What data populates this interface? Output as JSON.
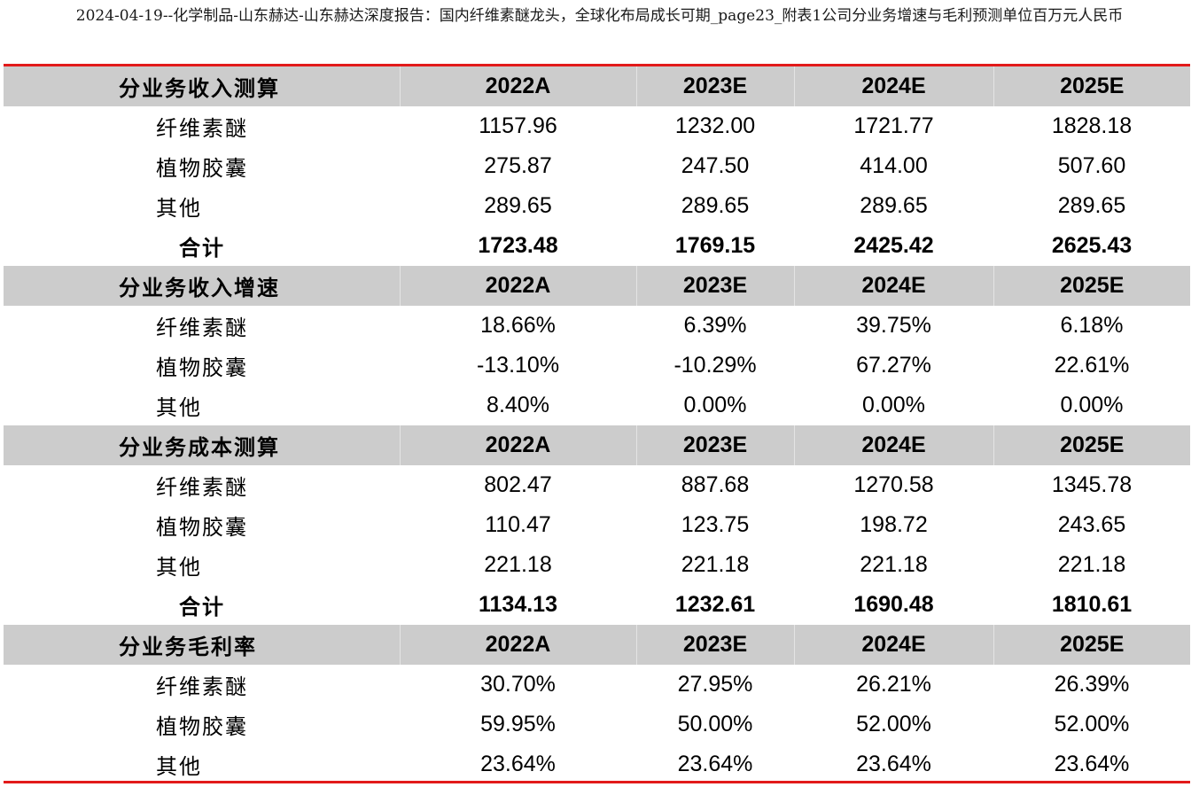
{
  "title": "2024-04-19--化学制品-山东赫达-山东赫达深度报告：国内纤维素醚龙头，全球化布局成长可期_page23_附表1公司分业务增速与毛利预测单位百万元人民币",
  "colors": {
    "accent_rule": "#e21a1a",
    "header_fill": "#cccccc"
  },
  "chart_data": {
    "type": "table",
    "title": "2024-04-19--化学制品-山东赫达-山东赫达深度报告：国内纤维素醚龙头，全球化布局成长可期_page23_附表1公司分业务增速与毛利预测单位百万元人民币",
    "columns": [
      "2022A",
      "2023E",
      "2024E",
      "2025E"
    ],
    "sections": [
      {
        "header": "分业务收入测算",
        "columns": [
          "2022A",
          "2023E",
          "2024E",
          "2025E"
        ],
        "rows": [
          {
            "label": "纤维素醚",
            "values": [
              "1157.96",
              "1232.00",
              "1721.77",
              "1828.18"
            ]
          },
          {
            "label": "植物胶囊",
            "values": [
              "275.87",
              "247.50",
              "414.00",
              "507.60"
            ]
          },
          {
            "label": "其他",
            "values": [
              "289.65",
              "289.65",
              "289.65",
              "289.65"
            ]
          },
          {
            "label": "合计",
            "values": [
              "1723.48",
              "1769.15",
              "2425.42",
              "2625.43"
            ],
            "total": true
          }
        ]
      },
      {
        "header": "分业务收入增速",
        "columns": [
          "2022A",
          "2023E",
          "2024E",
          "2025E"
        ],
        "rows": [
          {
            "label": "纤维素醚",
            "values": [
              "18.66%",
              "6.39%",
              "39.75%",
              "6.18%"
            ]
          },
          {
            "label": "植物胶囊",
            "values": [
              "-13.10%",
              "-10.29%",
              "67.27%",
              "22.61%"
            ]
          },
          {
            "label": "其他",
            "values": [
              "8.40%",
              "0.00%",
              "0.00%",
              "0.00%"
            ]
          }
        ]
      },
      {
        "header": "分业务成本测算",
        "columns": [
          "2022A",
          "2023E",
          "2024E",
          "2025E"
        ],
        "rows": [
          {
            "label": "纤维素醚",
            "values": [
              "802.47",
              "887.68",
              "1270.58",
              "1345.78"
            ]
          },
          {
            "label": "植物胶囊",
            "values": [
              "110.47",
              "123.75",
              "198.72",
              "243.65"
            ]
          },
          {
            "label": "其他",
            "values": [
              "221.18",
              "221.18",
              "221.18",
              "221.18"
            ]
          },
          {
            "label": "合计",
            "values": [
              "1134.13",
              "1232.61",
              "1690.48",
              "1810.61"
            ],
            "total": true
          }
        ]
      },
      {
        "header": "分业务毛利率",
        "columns": [
          "2022A",
          "2023E",
          "2024E",
          "2025E"
        ],
        "rows": [
          {
            "label": "纤维素醚",
            "values": [
              "30.70%",
              "27.95%",
              "26.21%",
              "26.39%"
            ]
          },
          {
            "label": "植物胶囊",
            "values": [
              "59.95%",
              "50.00%",
              "52.00%",
              "52.00%"
            ]
          },
          {
            "label": "其他",
            "values": [
              "23.64%",
              "23.64%",
              "23.64%",
              "23.64%"
            ]
          }
        ]
      }
    ]
  }
}
